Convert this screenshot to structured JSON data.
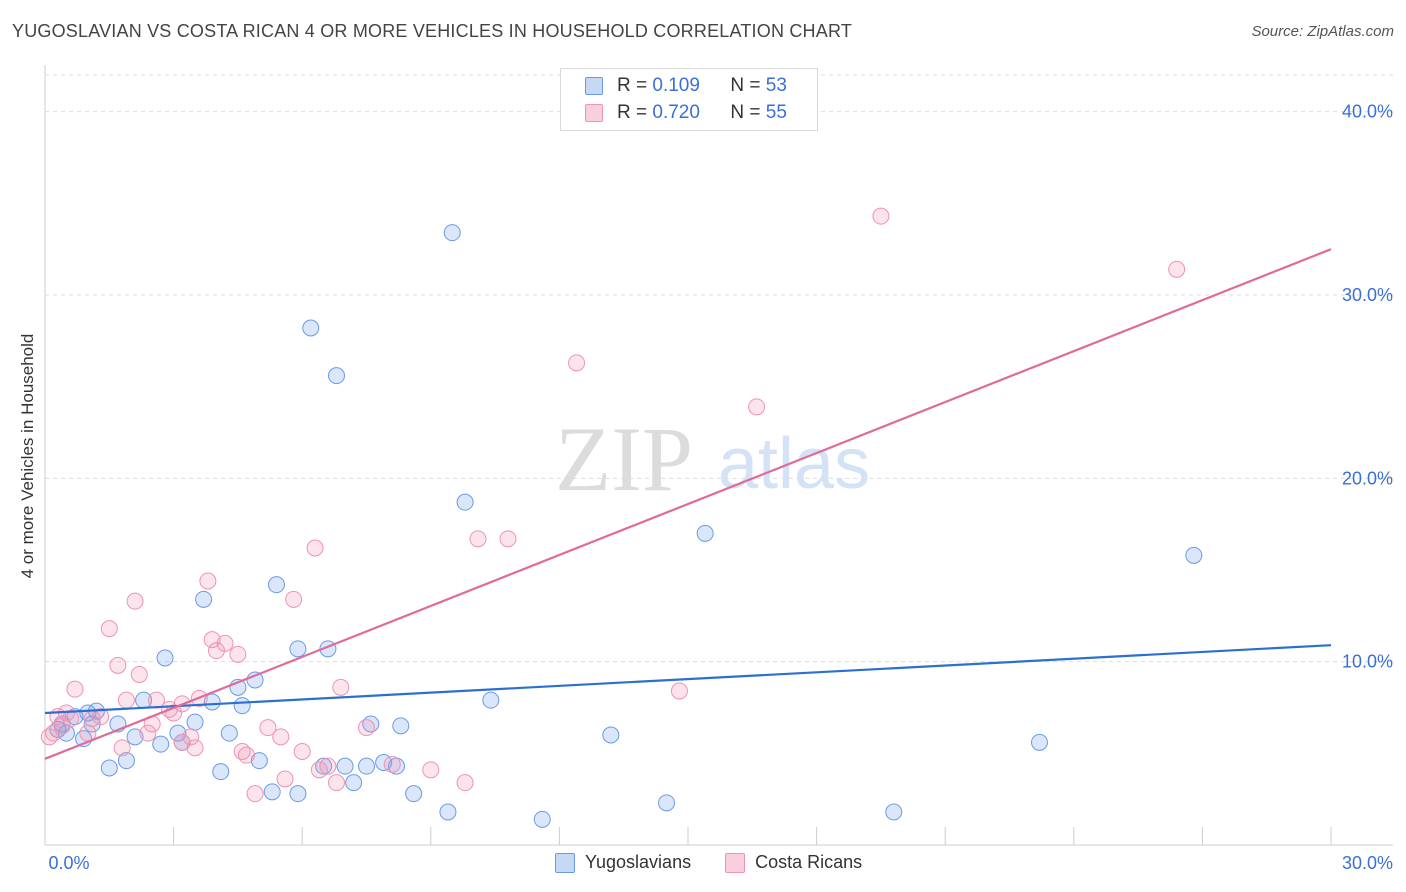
{
  "title": "YUGOSLAVIAN VS COSTA RICAN 4 OR MORE VEHICLES IN HOUSEHOLD CORRELATION CHART",
  "source": "Source: ZipAtlas.com",
  "watermark": {
    "zip": "ZIP",
    "atlas": "atlas"
  },
  "legend": {
    "rows": [
      {
        "r_label": "R = ",
        "r_value": "0.109",
        "n_label": "N = ",
        "n_value": "53"
      },
      {
        "r_label": "R = ",
        "r_value": "0.720",
        "n_label": "N = ",
        "n_value": "55"
      }
    ]
  },
  "chart_data": {
    "type": "scatter",
    "title": "YUGOSLAVIAN VS COSTA RICAN 4 OR MORE VEHICLES IN HOUSEHOLD CORRELATION CHART",
    "xlabel": "",
    "ylabel": "4 or more Vehicles in Household",
    "xlim": [
      0,
      30
    ],
    "ylim": [
      0,
      42
    ],
    "x_tick_labels": [
      "0.0%",
      "30.0%"
    ],
    "y_ticks": [
      10,
      20,
      30,
      40
    ],
    "y_tick_labels": [
      "10.0%",
      "20.0%",
      "30.0%",
      "40.0%"
    ],
    "grid": true,
    "legend_position": "top-center",
    "colors": {
      "Yugoslavians": "#6a9be6",
      "Costa Ricans": "#ee93b3",
      "trend_blue": "#2d6fcf",
      "trend_pink": "#e06b98",
      "tick_label": "#3a6fd8"
    },
    "series": [
      {
        "name": "Yugoslavians",
        "r": 0.109,
        "n": 53,
        "trend": {
          "x": [
            0,
            30
          ],
          "y": [
            7.2,
            10.9
          ]
        },
        "points": [
          [
            0.3,
            6.3
          ],
          [
            0.4,
            6.6
          ],
          [
            0.5,
            6.1
          ],
          [
            0.7,
            7.0
          ],
          [
            0.9,
            5.8
          ],
          [
            1.0,
            7.2
          ],
          [
            1.1,
            6.6
          ],
          [
            1.2,
            7.3
          ],
          [
            1.5,
            4.2
          ],
          [
            1.7,
            6.6
          ],
          [
            1.9,
            4.6
          ],
          [
            2.1,
            5.9
          ],
          [
            2.3,
            7.9
          ],
          [
            2.7,
            5.5
          ],
          [
            2.8,
            10.2
          ],
          [
            3.1,
            6.1
          ],
          [
            3.2,
            5.6
          ],
          [
            3.5,
            6.7
          ],
          [
            3.7,
            13.4
          ],
          [
            3.9,
            7.8
          ],
          [
            4.1,
            4.0
          ],
          [
            4.3,
            6.1
          ],
          [
            4.5,
            8.6
          ],
          [
            4.6,
            7.6
          ],
          [
            4.9,
            9.0
          ],
          [
            5.0,
            4.6
          ],
          [
            5.3,
            2.9
          ],
          [
            5.4,
            14.2
          ],
          [
            5.9,
            2.8
          ],
          [
            5.9,
            10.7
          ],
          [
            6.2,
            28.2
          ],
          [
            6.5,
            4.3
          ],
          [
            6.6,
            10.7
          ],
          [
            6.8,
            25.6
          ],
          [
            7.0,
            4.3
          ],
          [
            7.2,
            3.4
          ],
          [
            7.5,
            4.3
          ],
          [
            7.6,
            6.6
          ],
          [
            7.9,
            4.5
          ],
          [
            8.2,
            4.3
          ],
          [
            8.3,
            6.5
          ],
          [
            8.6,
            2.8
          ],
          [
            9.4,
            1.8
          ],
          [
            9.5,
            33.4
          ],
          [
            9.8,
            18.7
          ],
          [
            10.4,
            7.9
          ],
          [
            11.6,
            1.4
          ],
          [
            13.2,
            6.0
          ],
          [
            14.5,
            2.3
          ],
          [
            15.4,
            17.0
          ],
          [
            19.8,
            1.8
          ],
          [
            23.2,
            5.6
          ],
          [
            26.8,
            15.8
          ]
        ]
      },
      {
        "name": "Costa Ricans",
        "r": 0.72,
        "n": 55,
        "trend": {
          "x": [
            0,
            30
          ],
          "y": [
            4.7,
            32.5
          ]
        },
        "points": [
          [
            0.2,
            6.1
          ],
          [
            0.3,
            7.0
          ],
          [
            0.4,
            6.5
          ],
          [
            0.6,
            6.9
          ],
          [
            0.7,
            8.5
          ],
          [
            1.0,
            6.1
          ],
          [
            1.3,
            7.0
          ],
          [
            1.5,
            11.8
          ],
          [
            1.7,
            9.8
          ],
          [
            1.8,
            5.3
          ],
          [
            1.9,
            7.9
          ],
          [
            2.1,
            13.3
          ],
          [
            2.2,
            9.3
          ],
          [
            2.4,
            6.1
          ],
          [
            2.5,
            6.6
          ],
          [
            2.6,
            7.9
          ],
          [
            2.9,
            7.4
          ],
          [
            3.0,
            7.2
          ],
          [
            3.2,
            7.7
          ],
          [
            3.2,
            5.6
          ],
          [
            3.4,
            5.9
          ],
          [
            3.5,
            5.3
          ],
          [
            3.6,
            8.0
          ],
          [
            3.8,
            14.4
          ],
          [
            3.9,
            11.2
          ],
          [
            4.0,
            10.6
          ],
          [
            4.2,
            11.0
          ],
          [
            4.5,
            10.4
          ],
          [
            4.6,
            5.1
          ],
          [
            4.7,
            4.9
          ],
          [
            4.9,
            2.8
          ],
          [
            5.2,
            6.4
          ],
          [
            5.5,
            5.9
          ],
          [
            5.6,
            3.6
          ],
          [
            5.8,
            13.4
          ],
          [
            6.0,
            5.1
          ],
          [
            6.3,
            16.2
          ],
          [
            6.4,
            4.1
          ],
          [
            6.6,
            4.3
          ],
          [
            6.8,
            3.4
          ],
          [
            6.9,
            8.6
          ],
          [
            7.5,
            6.4
          ],
          [
            8.1,
            4.4
          ],
          [
            9.0,
            4.1
          ],
          [
            9.8,
            3.4
          ],
          [
            10.1,
            16.7
          ],
          [
            10.8,
            16.7
          ],
          [
            12.4,
            26.3
          ],
          [
            14.8,
            8.4
          ],
          [
            16.6,
            23.9
          ],
          [
            19.5,
            34.3
          ],
          [
            26.4,
            31.4
          ],
          [
            0.1,
            5.9
          ],
          [
            0.5,
            7.2
          ],
          [
            1.1,
            6.9
          ]
        ]
      }
    ]
  },
  "bottom_legend": [
    "Yugoslavians",
    "Costa Ricans"
  ]
}
